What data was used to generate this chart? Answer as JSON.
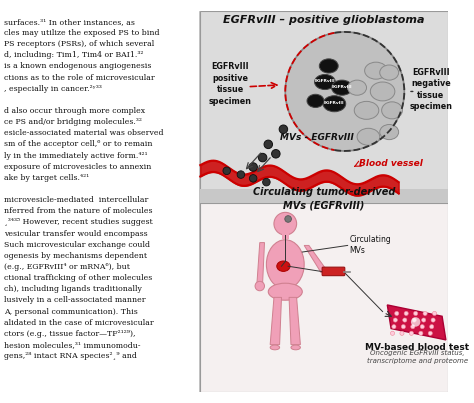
{
  "title": "EGFRvIII – positive glioblastoma",
  "bg_top_color": "#e0e0e0",
  "bg_bottom_color": "#f5f0f0",
  "bg_transition_color": "#d0d0d0",
  "left_text_bg": "#ffffff",
  "human_color": "#f0a0b8",
  "human_edge": "#d08090",
  "red_color": "#cc0000",
  "dark_cell": "#1a1a1a",
  "light_cell": "#c8c8c8",
  "mv_color": "#404040",
  "chip_color": "#cc1144",
  "text_dark": "#111111",
  "labels": {
    "top_title": "EGFRvIII – positive glioblastoma",
    "left_specimen": "EGFRvIII\npositive\ntissue\nspecimen",
    "right_specimen": "EGFRvIII\nnegative\ntissue\nspecimen",
    "mv_egfr": "MVs - EGFRvIII",
    "blood_vessel": "Blood vessel",
    "circulating": "Circulating tumor-derived\nMVs (EGFRvIII)",
    "circ_mvs": "Circulating\nMVs",
    "blood_test": "MV-based blood test",
    "blood_test_sub": "Oncogenic EGFRvIII status,\ntranscriptome and proteome",
    "cell_label": "EGFRvIII"
  },
  "left_text_lines": [
    "surfaces.³¹ In other instances, as",
    "cles may utilize the exposed PS to bind",
    "PS receptors (PSRs), of which several",
    "d, including: Tim1, Tim4 or BAI1.³²",
    "is a known endogenous angiogenesis",
    "ctions as to the role of microvesicular",
    ", especially in cancer.²ʸ³³",
    "",
    "d also occur through more complex",
    "ce PS and/or bridging molecules.³²",
    "esicle-associated material was observed",
    "sm of the acceptor cell,⁶ or to remain",
    "ly in the immediately active form.⁴²¹",
    "exposure of microvesicles to annexin",
    "ake by target cells.⁴²¹",
    "",
    "microvesicle-mediated  intercellular",
    "nferred from the nature of molecules",
    "¸³⁴³⁵ However, recent studies suggest",
    "vesicular transfer would encompass",
    "Such microvesicular exchange could",
    "ogenesis by mechanisms dependent",
    "(e.g., EGFRvIII⁴ or mRNA⁶), but",
    "ctional trafficking of other molecules",
    "ch), including ligands traditionally",
    "lusively in a cell-associated manner",
    "A, personal communication). This",
    "alidated in the case of microvesicular",
    "ctors (e.g., tissue factor—TF²¹²⁹),",
    "hesion molecules,³¹ immunomodu-",
    "gens,²⁸ intact RNA species²¸⁹ and"
  ]
}
